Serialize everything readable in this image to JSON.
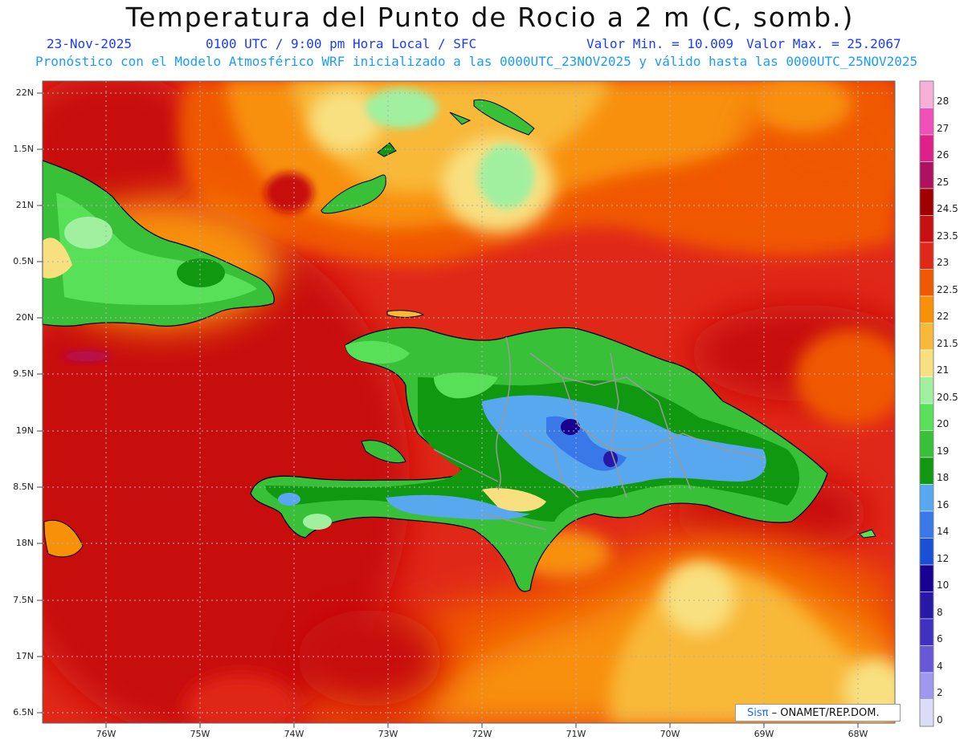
{
  "header": {
    "title": "Temperatura del Punto de Rocio a 2 m (C, somb.)",
    "date": "23-Nov-2025",
    "time": "0100 UTC / 9:00 pm Hora Local / SFC",
    "min": "Valor Min. = 10.009",
    "max": "Valor Max. = 25.2067",
    "model_line": "Pronóstico con el Modelo Atmosférico WRF inicializado a las 0000UTC_23NOV2025 y válido hasta las  0000UTC_25NOV2025"
  },
  "map": {
    "lat_labels": [
      "22N",
      "1.5N",
      "21N",
      "0.5N",
      "20N",
      "9.5N",
      "19N",
      "8.5N",
      "18N",
      "7.5N",
      "17N",
      "6.5N"
    ],
    "lon_labels": [
      "76W",
      "75W",
      "74W",
      "73W",
      "72W",
      "71W",
      "70W",
      "69W",
      "68W"
    ]
  },
  "colorbar": {
    "labels": [
      "28",
      "27",
      "26",
      "25",
      "24.5",
      "23.5",
      "23",
      "22.5",
      "22",
      "21.5",
      "21",
      "20.5",
      "20",
      "19",
      "18",
      "16",
      "14",
      "12",
      "10",
      "8",
      "6",
      "4",
      "2",
      "0"
    ],
    "colors": [
      "#f8b0d8",
      "#f050b8",
      "#e0208a",
      "#b01060",
      "#a00000",
      "#c81010",
      "#e02818",
      "#f05800",
      "#f89008",
      "#f8b838",
      "#f8e080",
      "#a0f0a0",
      "#58e058",
      "#38c038",
      "#109810",
      "#58a8f0",
      "#3878e8",
      "#1850d8",
      "#180090",
      "#2818a8",
      "#4030c0",
      "#6858d8",
      "#a098f0",
      "#dcdcf8"
    ]
  },
  "credit": {
    "brand": "Sisπ",
    "text": " – ONAMET/REP.DOM."
  }
}
